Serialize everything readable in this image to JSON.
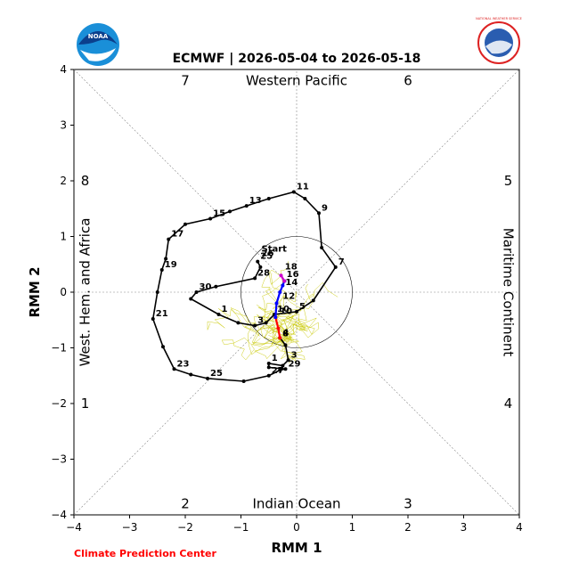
{
  "chart_data": {
    "type": "line",
    "title": "ECMWF | 2026-05-04 to 2026-05-18",
    "xlabel": "RMM 1",
    "ylabel": "RMM 2",
    "xlim": [
      -4,
      4
    ],
    "ylim": [
      -4,
      4
    ],
    "ticks": [
      "−4",
      "−3",
      "−2",
      "−1",
      "0",
      "1",
      "2",
      "3",
      "4"
    ],
    "grid": false,
    "phase_labels": [
      "1",
      "2",
      "3",
      "4",
      "5",
      "6",
      "7",
      "8"
    ],
    "region_labels": {
      "top": "Western Pacific",
      "bottom": "Indian Ocean",
      "left": "West. Hem. and Africa",
      "right": "Maritime Continent"
    },
    "amplitude_circle_radius": 1,
    "observed": {
      "color": "#000000",
      "points": [
        {
          "x": -0.7,
          "y": 0.55,
          "label": "25"
        },
        {
          "x": -0.65,
          "y": 0.45,
          "label": ""
        },
        {
          "x": -0.75,
          "y": 0.25,
          "label": "28"
        },
        {
          "x": -1.45,
          "y": 0.1,
          "label": ""
        },
        {
          "x": -1.8,
          "y": 0.0,
          "label": "30"
        },
        {
          "x": -1.9,
          "y": -0.12,
          "label": ""
        },
        {
          "x": -1.4,
          "y": -0.4,
          "label": "1"
        },
        {
          "x": -1.05,
          "y": -0.55,
          "label": ""
        },
        {
          "x": -0.75,
          "y": -0.6,
          "label": "3"
        },
        {
          "x": -0.55,
          "y": -0.55,
          "label": ""
        },
        {
          "x": -0.4,
          "y": -0.4,
          "label": "10"
        },
        {
          "x": 0.0,
          "y": -0.35,
          "label": "5"
        },
        {
          "x": 0.3,
          "y": -0.15,
          "label": ""
        },
        {
          "x": 0.7,
          "y": 0.45,
          "label": "7"
        },
        {
          "x": 0.45,
          "y": 0.8,
          "label": ""
        },
        {
          "x": 0.4,
          "y": 1.42,
          "label": "9"
        },
        {
          "x": 0.15,
          "y": 1.68,
          "label": ""
        },
        {
          "x": -0.05,
          "y": 1.8,
          "label": "11"
        },
        {
          "x": -0.5,
          "y": 1.68,
          "label": ""
        },
        {
          "x": -0.9,
          "y": 1.55,
          "label": "13"
        },
        {
          "x": -1.2,
          "y": 1.45,
          "label": ""
        },
        {
          "x": -1.55,
          "y": 1.32,
          "label": "15"
        },
        {
          "x": -2.0,
          "y": 1.22,
          "label": ""
        },
        {
          "x": -2.3,
          "y": 0.95,
          "label": "17"
        },
        {
          "x": -2.35,
          "y": 0.6,
          "label": ""
        },
        {
          "x": -2.42,
          "y": 0.4,
          "label": "19"
        },
        {
          "x": -2.5,
          "y": 0.0,
          "label": ""
        },
        {
          "x": -2.58,
          "y": -0.48,
          "label": "21"
        },
        {
          "x": -2.4,
          "y": -0.98,
          "label": ""
        },
        {
          "x": -2.2,
          "y": -1.38,
          "label": "23"
        },
        {
          "x": -1.9,
          "y": -1.48,
          "label": ""
        },
        {
          "x": -1.6,
          "y": -1.55,
          "label": "25"
        },
        {
          "x": -0.95,
          "y": -1.6,
          "label": ""
        },
        {
          "x": -0.5,
          "y": -1.5,
          "label": "27"
        },
        {
          "x": -0.3,
          "y": -1.4,
          "label": ""
        },
        {
          "x": -0.2,
          "y": -1.38,
          "label": "29"
        },
        {
          "x": -0.5,
          "y": -1.35,
          "label": ""
        },
        {
          "x": -0.5,
          "y": -1.28,
          "label": "1"
        },
        {
          "x": -0.25,
          "y": -1.32,
          "label": ""
        },
        {
          "x": -0.15,
          "y": -1.22,
          "label": "3"
        },
        {
          "x": -0.2,
          "y": -0.95,
          "label": ""
        },
        {
          "x": -0.3,
          "y": -0.82,
          "label": "4"
        }
      ]
    },
    "forecast_segments": [
      {
        "color": "#ff0000",
        "points": [
          {
            "x": -0.3,
            "y": -0.82
          },
          {
            "x": -0.33,
            "y": -0.65
          },
          {
            "x": -0.38,
            "y": -0.45
          }
        ]
      },
      {
        "color": "#0000ff",
        "points": [
          {
            "x": -0.38,
            "y": -0.45
          },
          {
            "x": -0.36,
            "y": -0.2
          },
          {
            "x": -0.3,
            "y": 0.0
          },
          {
            "x": -0.25,
            "y": 0.12
          },
          {
            "x": -0.22,
            "y": 0.2
          }
        ]
      },
      {
        "color": "#cc00cc",
        "points": [
          {
            "x": -0.22,
            "y": 0.2
          },
          {
            "x": -0.28,
            "y": 0.3
          }
        ]
      }
    ],
    "forecast_labels": [
      {
        "x": -0.3,
        "y": -0.82,
        "label": "8"
      },
      {
        "x": -0.35,
        "y": -0.42,
        "label": "10"
      },
      {
        "x": -0.3,
        "y": -0.15,
        "label": "12"
      },
      {
        "x": -0.25,
        "y": 0.1,
        "label": "14"
      },
      {
        "x": -0.23,
        "y": 0.24,
        "label": "16"
      },
      {
        "x": -0.26,
        "y": 0.38,
        "label": "18"
      },
      {
        "x": -0.68,
        "y": 0.62,
        "label": "26"
      },
      {
        "x": -0.68,
        "y": 0.7,
        "label": "Start"
      }
    ],
    "ensemble_color": "#c8c800",
    "ensemble_members": 20
  },
  "credit": "Climate Prediction Center",
  "logos": {
    "left": "NOAA",
    "right": "NATIONAL WEATHER SERVICE"
  }
}
